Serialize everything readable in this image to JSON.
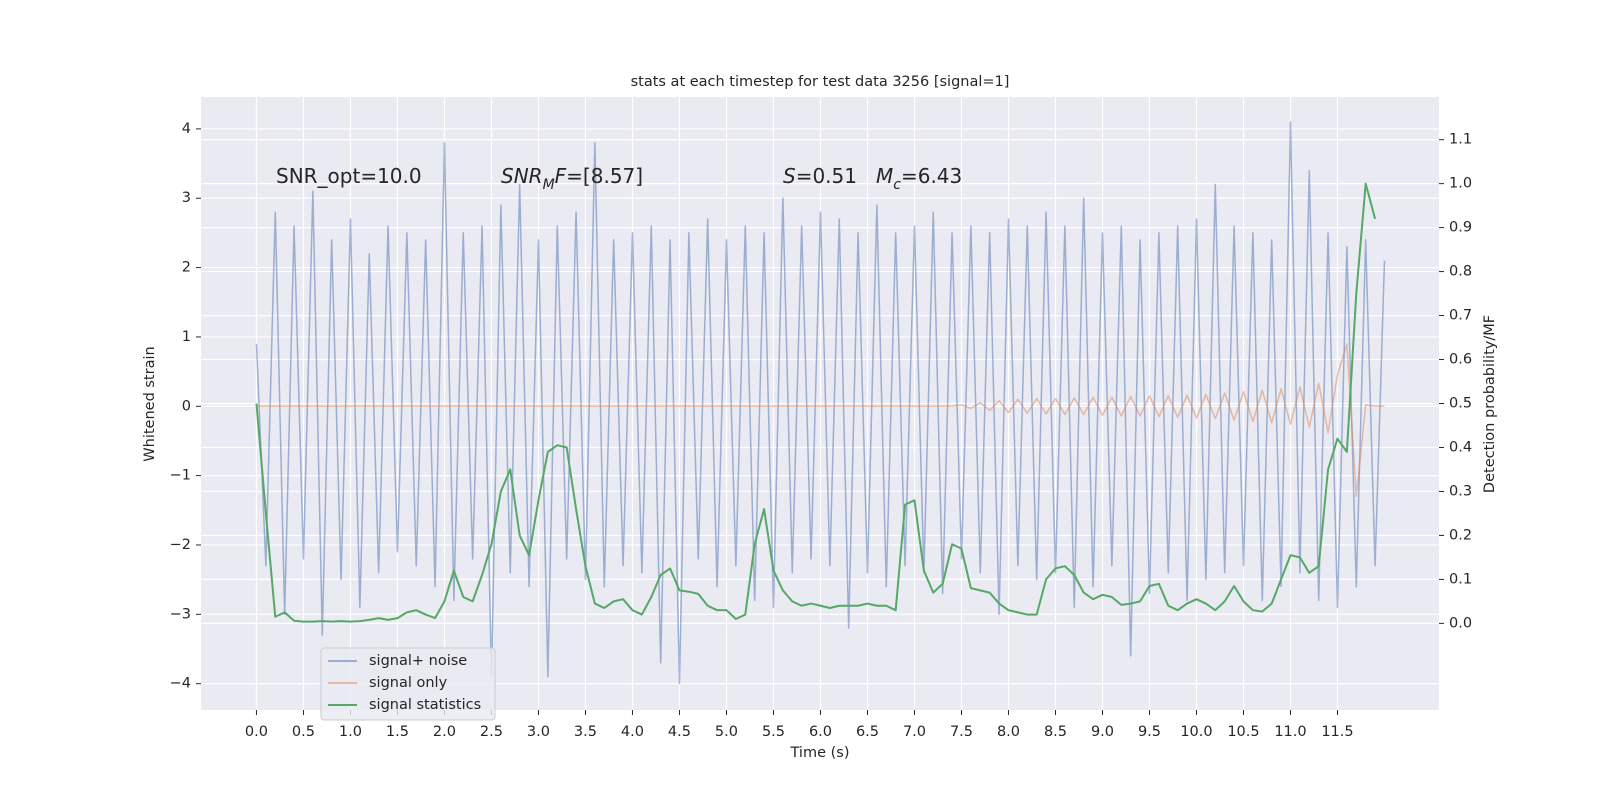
{
  "chart_data": {
    "type": "line",
    "title": "stats at each timestep for test data 3256 [signal=1]",
    "xlabel": "Time (s)",
    "ylabel": "Whitened strain",
    "y2label": "Detection probability/MF",
    "annotations": [
      [
        {
          "text": "SNR_opt=10.0"
        }
      ],
      [
        {
          "text": "SNR",
          "style": "italic"
        },
        {
          "text": "M",
          "style": "italic-sub"
        },
        {
          "text": "F",
          "style": "italic"
        },
        {
          "text": "=[8.57]"
        }
      ],
      [
        {
          "text": "S",
          "style": "italic"
        },
        {
          "text": "=0.51"
        }
      ],
      [
        {
          "text": "M",
          "style": "italic"
        },
        {
          "text": "c",
          "style": "italic-sub"
        },
        {
          "text": "=6.43"
        }
      ]
    ],
    "grid": true,
    "legend": "lower left",
    "xlim": [
      -0.59,
      12.58
    ],
    "ylim": [
      -4.38,
      4.46
    ],
    "y2lim": [
      -0.197,
      1.197
    ],
    "xticks": [
      {
        "value": 0,
        "label": "0.0"
      },
      0.5,
      {
        "value": 1,
        "label": "1.0"
      },
      1.5,
      {
        "value": 2,
        "label": "2.0"
      },
      2.5,
      {
        "value": 3,
        "label": "3.0"
      },
      3.5,
      {
        "value": 4,
        "label": "4.0"
      },
      4.5,
      {
        "value": 5,
        "label": "5.0"
      },
      5.5,
      {
        "value": 6,
        "label": "6.0"
      },
      6.5,
      {
        "value": 7,
        "label": "7.0"
      },
      7.5,
      {
        "value": 8,
        "label": "8.0"
      },
      8.5,
      {
        "value": 9,
        "label": "9.0"
      },
      9.5,
      {
        "value": 10,
        "label": "10.0"
      },
      10.5,
      {
        "value": 11,
        "label": "11.0"
      },
      11.5
    ],
    "yticks": [
      {
        "value": -4,
        "label": "−4"
      },
      {
        "value": -3,
        "label": "−3"
      },
      {
        "value": -2,
        "label": "−2"
      },
      {
        "value": -1,
        "label": "−1"
      },
      0,
      1,
      2,
      3,
      4
    ],
    "y2ticks": [
      {
        "value": 0,
        "label": "0.0"
      },
      0.1,
      0.2,
      0.3,
      0.4,
      0.5,
      0.6,
      0.7,
      0.8,
      0.9,
      {
        "value": 1,
        "label": "1.0"
      },
      1.1
    ],
    "x": [
      0,
      0.1,
      0.2,
      0.3,
      0.4,
      0.5,
      0.6,
      0.7,
      0.8,
      0.9,
      1,
      1.1,
      1.2,
      1.3,
      1.4,
      1.5,
      1.6,
      1.7,
      1.8,
      1.9,
      2,
      2.1,
      2.2,
      2.3,
      2.4,
      2.5,
      2.6,
      2.7,
      2.8,
      2.9,
      3,
      3.1,
      3.2,
      3.3,
      3.4,
      3.5,
      3.6,
      3.7,
      3.8,
      3.9,
      4,
      4.1,
      4.2,
      4.3,
      4.4,
      4.5,
      4.6,
      4.7,
      4.8,
      4.9,
      5,
      5.1,
      5.2,
      5.3,
      5.4,
      5.5,
      5.6,
      5.7,
      5.8,
      5.9,
      6,
      6.1,
      6.2,
      6.3,
      6.4,
      6.5,
      6.6,
      6.7,
      6.8,
      6.9,
      7,
      7.1,
      7.2,
      7.3,
      7.4,
      7.5,
      7.6,
      7.7,
      7.8,
      7.9,
      8,
      8.1,
      8.2,
      8.3,
      8.4,
      8.5,
      8.6,
      8.7,
      8.8,
      8.9,
      9,
      9.1,
      9.2,
      9.3,
      9.4,
      9.5,
      9.6,
      9.7,
      9.8,
      9.9,
      10,
      10.1,
      10.2,
      10.3,
      10.4,
      10.5,
      10.6,
      10.7,
      10.8,
      10.9,
      11,
      11.1,
      11.2,
      11.3,
      11.4,
      11.5,
      11.6,
      11.7,
      11.8,
      11.9,
      12
    ],
    "series": [
      {
        "name": "signal+ noise",
        "color": "#4c72b0",
        "opacity": 0.5,
        "values": [
          0.9,
          -2.3,
          2.8,
          -3.0,
          2.6,
          -2.2,
          3.1,
          -3.3,
          2.4,
          -2.5,
          2.7,
          -2.9,
          2.2,
          -2.4,
          2.6,
          -2.1,
          2.5,
          -2.3,
          2.4,
          -2.6,
          3.8,
          -2.8,
          2.5,
          -2.2,
          2.6,
          -3.9,
          2.9,
          -2.4,
          3.2,
          -2.6,
          2.4,
          -3.9,
          2.6,
          -2.2,
          2.8,
          -2.5,
          3.8,
          -2.6,
          2.4,
          -2.3,
          2.5,
          -2.4,
          2.6,
          -3.7,
          2.4,
          -4.0,
          2.5,
          -2.2,
          2.7,
          -2.6,
          2.4,
          -2.3,
          2.6,
          -2.8,
          2.5,
          -2.9,
          3.0,
          -2.4,
          2.6,
          -2.2,
          2.8,
          -2.3,
          2.7,
          -3.2,
          2.5,
          -2.4,
          2.9,
          -2.6,
          2.5,
          -2.3,
          2.6,
          -2.4,
          2.8,
          -2.7,
          2.5,
          -2.2,
          2.6,
          -2.4,
          2.5,
          -3.0,
          2.7,
          -2.3,
          2.6,
          -2.5,
          2.8,
          -2.4,
          2.6,
          -2.9,
          3.0,
          -2.6,
          2.5,
          -2.3,
          2.6,
          -3.6,
          2.4,
          -2.7,
          2.5,
          -2.4,
          2.6,
          -2.8,
          2.7,
          -2.5,
          3.2,
          -2.4,
          2.6,
          -2.3,
          2.5,
          -2.8,
          2.4,
          -2.6,
          4.1,
          -2.4,
          3.4,
          -2.8,
          2.5,
          -2.9,
          2.3,
          -2.6,
          2.4,
          -2.3,
          2.1
        ]
      },
      {
        "name": "signal only",
        "color": "#dd8452",
        "opacity": 0.5,
        "values": [
          0,
          0,
          0,
          0,
          0,
          0,
          0,
          0,
          0,
          0,
          0,
          0,
          0,
          0,
          0,
          0,
          0,
          0,
          0,
          0,
          0,
          0,
          0,
          0,
          0,
          0,
          0,
          0,
          0,
          0,
          0,
          0,
          0,
          0,
          0,
          0,
          0,
          0,
          0,
          0,
          0,
          0,
          0,
          0,
          0,
          0,
          0,
          0,
          0,
          0,
          0,
          0,
          0,
          0,
          0,
          0,
          0,
          0,
          0,
          0,
          0,
          0,
          0,
          0,
          0,
          0,
          0,
          0,
          0,
          0,
          0,
          0,
          0,
          0,
          0,
          0.02,
          -0.03,
          0.05,
          -0.06,
          0.08,
          -0.09,
          0.1,
          -0.1,
          0.11,
          -0.11,
          0.11,
          -0.12,
          0.12,
          -0.12,
          0.13,
          -0.13,
          0.13,
          -0.14,
          0.14,
          -0.14,
          0.15,
          -0.15,
          0.15,
          -0.16,
          0.16,
          -0.17,
          0.17,
          -0.18,
          0.19,
          -0.2,
          0.21,
          -0.22,
          0.23,
          -0.24,
          0.25,
          -0.26,
          0.28,
          -0.3,
          0.33,
          -0.38,
          0.45,
          0.9,
          -1.3,
          0.02,
          0,
          0
        ]
      },
      {
        "name": "signal statistics",
        "color": "#55a868",
        "axis": "y2",
        "values": [
          0.5,
          0.25,
          0.015,
          0.025,
          0.006,
          0.004,
          0.004,
          0.005,
          0.004,
          0.005,
          0.004,
          0.005,
          0.008,
          0.012,
          0.008,
          0.012,
          0.025,
          0.03,
          0.02,
          0.012,
          0.05,
          0.12,
          0.06,
          0.05,
          0.11,
          0.18,
          0.3,
          0.35,
          0.2,
          0.155,
          0.28,
          0.39,
          0.405,
          0.4,
          0.26,
          0.13,
          0.045,
          0.035,
          0.05,
          0.055,
          0.03,
          0.02,
          0.06,
          0.11,
          0.125,
          0.075,
          0.072,
          0.067,
          0.04,
          0.03,
          0.03,
          0.01,
          0.02,
          0.18,
          0.26,
          0.12,
          0.075,
          0.05,
          0.04,
          0.045,
          0.04,
          0.035,
          0.04,
          0.04,
          0.04,
          0.045,
          0.04,
          0.04,
          0.03,
          0.27,
          0.28,
          0.12,
          0.07,
          0.09,
          0.18,
          0.17,
          0.08,
          0.075,
          0.07,
          0.045,
          0.03,
          0.025,
          0.02,
          0.02,
          0.1,
          0.125,
          0.13,
          0.11,
          0.07,
          0.055,
          0.065,
          0.06,
          0.042,
          0.045,
          0.05,
          0.085,
          0.09,
          0.04,
          0.03,
          0.045,
          0.055,
          0.045,
          0.03,
          0.05,
          0.085,
          0.05,
          0.03,
          0.027,
          0.045,
          0.1,
          0.155,
          0.15,
          0.115,
          0.13,
          0.35,
          0.42,
          0.39,
          0.75,
          1.0,
          0.92,
          null
        ]
      }
    ]
  }
}
